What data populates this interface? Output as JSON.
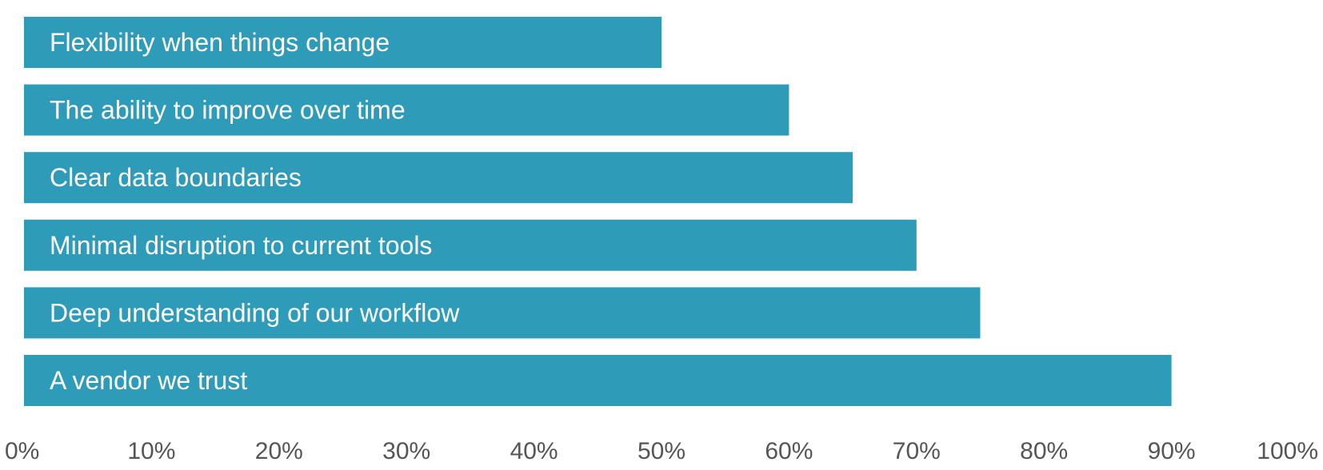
{
  "chart_data": {
    "type": "bar",
    "orientation": "horizontal",
    "categories": [
      "Flexibility when things change",
      "The ability to improve over time",
      "Clear data boundaries",
      "Minimal disruption to current tools",
      "Deep understanding of our workflow",
      "A vendor we trust"
    ],
    "values": [
      50,
      60,
      65,
      70,
      75,
      90
    ],
    "value_unit": "%",
    "xlim": [
      0,
      100
    ],
    "x_ticks": [
      "0%",
      "10%",
      "20%",
      "30%",
      "40%",
      "50%",
      "60%",
      "70%",
      "80%",
      "90%",
      "100%"
    ],
    "grid": false,
    "legend": "none",
    "labels_inside_bars": true
  },
  "colors": {
    "bar": "#2e9cb8",
    "bar_label": "#ffffff",
    "tick_label": "#555555",
    "background": "#ffffff"
  }
}
